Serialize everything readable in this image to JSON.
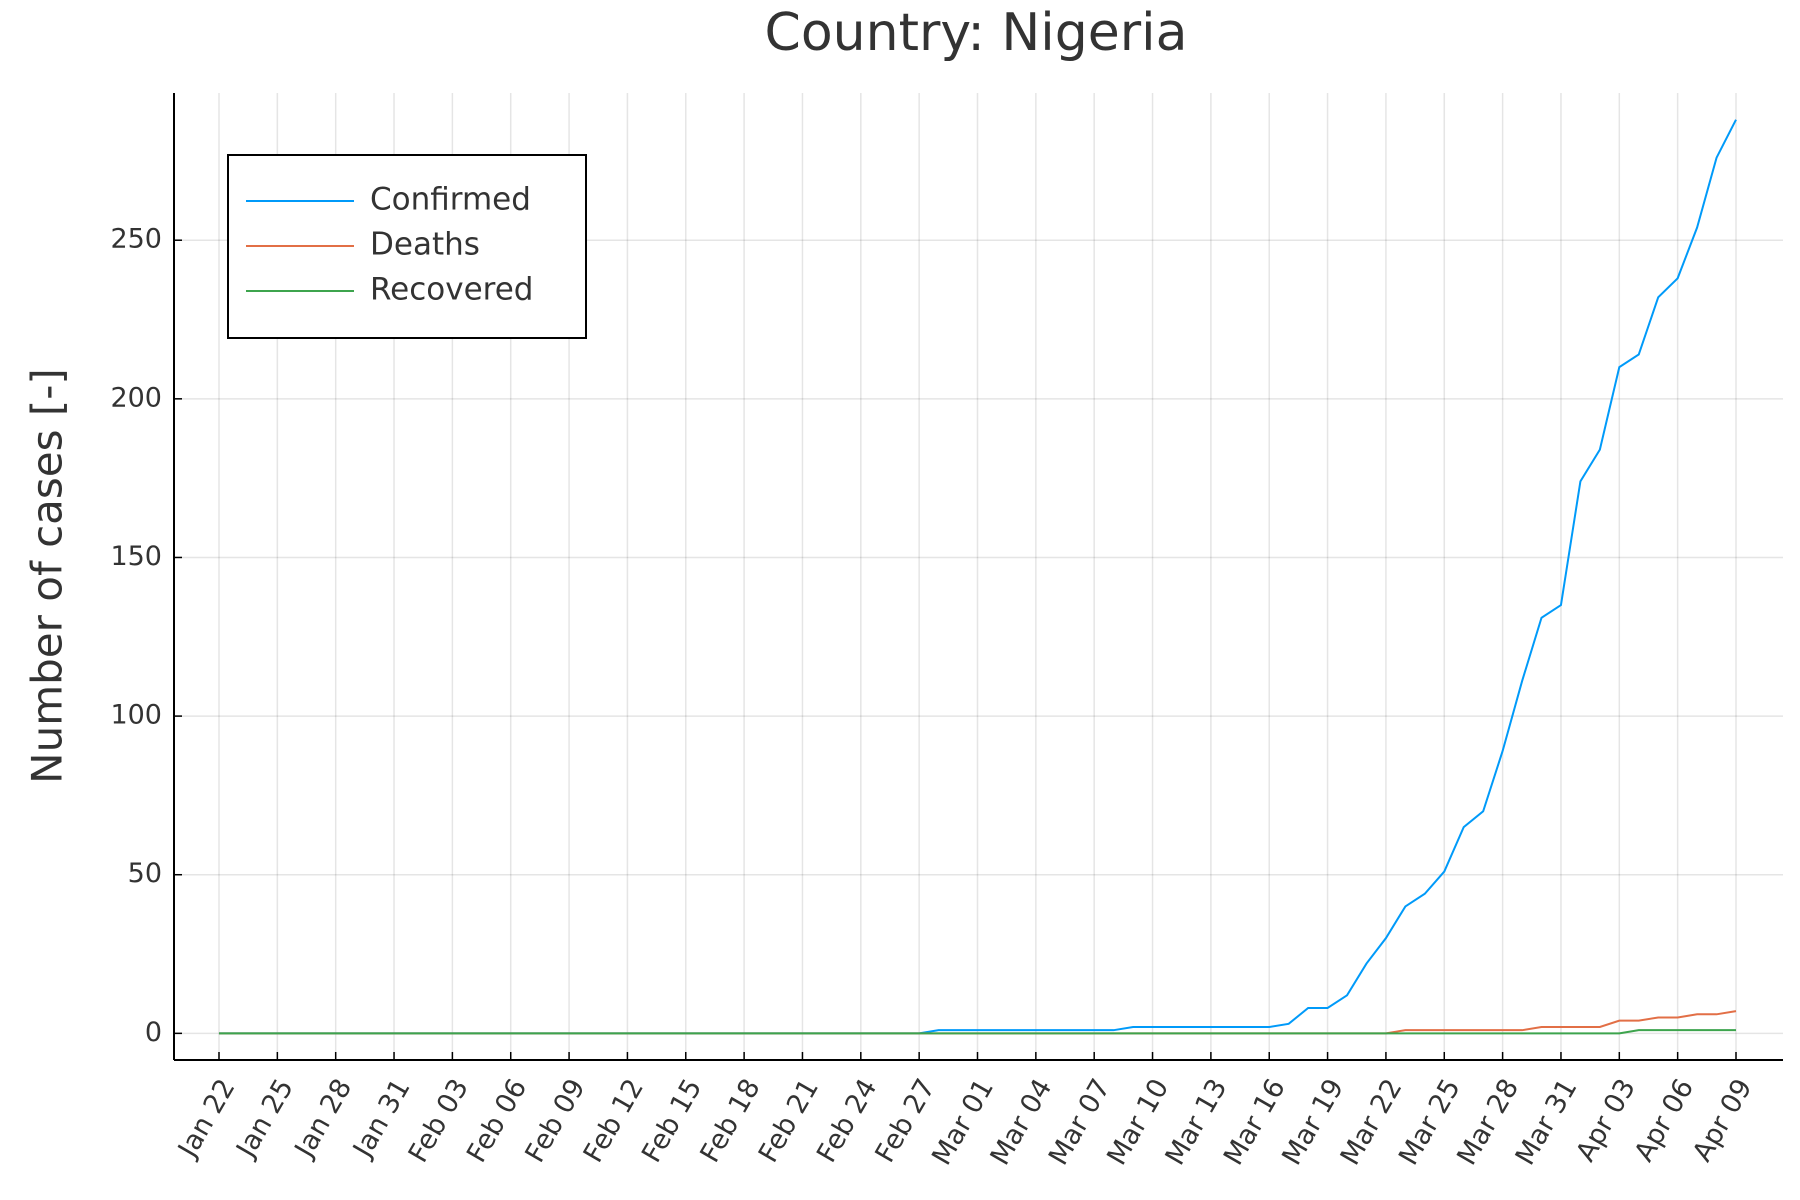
{
  "chart_data": {
    "type": "line",
    "title": "Country: Nigeria",
    "y_label": "Number of cases [-]",
    "categories": [
      "Jan 22",
      null,
      null,
      "Jan 25",
      null,
      null,
      "Jan 28",
      null,
      null,
      "Jan 31",
      null,
      null,
      "Feb 03",
      null,
      null,
      "Feb 06",
      null,
      null,
      "Feb 09",
      null,
      null,
      "Feb 12",
      null,
      null,
      "Feb 15",
      null,
      null,
      "Feb 18",
      null,
      null,
      "Feb 21",
      null,
      null,
      "Feb 24",
      null,
      null,
      "Feb 27",
      null,
      null,
      "Mar 01",
      null,
      null,
      "Mar 04",
      null,
      null,
      "Mar 07",
      null,
      null,
      "Mar 10",
      null,
      null,
      "Mar 13",
      null,
      null,
      "Mar 16",
      null,
      null,
      "Mar 19",
      null,
      null,
      "Mar 22",
      null,
      null,
      "Mar 25",
      null,
      null,
      "Mar 28",
      null,
      null,
      "Mar 31",
      null,
      null,
      "Apr 03",
      null,
      null,
      "Apr 06",
      null,
      null,
      "Apr 09"
    ],
    "series": [
      {
        "name": "Confirmed",
        "color": "#009af9",
        "values": [
          0,
          0,
          0,
          0,
          0,
          0,
          0,
          0,
          0,
          0,
          0,
          0,
          0,
          0,
          0,
          0,
          0,
          0,
          0,
          0,
          0,
          0,
          0,
          0,
          0,
          0,
          0,
          0,
          0,
          0,
          0,
          0,
          0,
          0,
          0,
          0,
          0,
          1,
          1,
          1,
          1,
          1,
          1,
          1,
          1,
          1,
          1,
          2,
          2,
          2,
          2,
          2,
          2,
          2,
          2,
          3,
          8,
          8,
          12,
          22,
          30,
          40,
          44,
          51,
          65,
          70,
          89,
          111,
          131,
          135,
          174,
          184,
          210,
          214,
          232,
          238,
          254,
          276,
          288
        ]
      },
      {
        "name": "Deaths",
        "color": "#e26f46",
        "values": [
          0,
          0,
          0,
          0,
          0,
          0,
          0,
          0,
          0,
          0,
          0,
          0,
          0,
          0,
          0,
          0,
          0,
          0,
          0,
          0,
          0,
          0,
          0,
          0,
          0,
          0,
          0,
          0,
          0,
          0,
          0,
          0,
          0,
          0,
          0,
          0,
          0,
          0,
          0,
          0,
          0,
          0,
          0,
          0,
          0,
          0,
          0,
          0,
          0,
          0,
          0,
          0,
          0,
          0,
          0,
          0,
          0,
          0,
          0,
          0,
          0,
          1,
          1,
          1,
          1,
          1,
          1,
          1,
          2,
          2,
          2,
          2,
          4,
          4,
          5,
          5,
          6,
          6,
          7
        ]
      },
      {
        "name": "Recovered",
        "color": "#3da44d",
        "values": [
          0,
          0,
          0,
          0,
          0,
          0,
          0,
          0,
          0,
          0,
          0,
          0,
          0,
          0,
          0,
          0,
          0,
          0,
          0,
          0,
          0,
          0,
          0,
          0,
          0,
          0,
          0,
          0,
          0,
          0,
          0,
          0,
          0,
          0,
          0,
          0,
          0,
          0,
          0,
          0,
          0,
          0,
          0,
          0,
          0,
          0,
          0,
          0,
          0,
          0,
          0,
          0,
          0,
          0,
          0,
          0,
          0,
          0,
          0,
          0,
          0,
          0,
          0,
          0,
          0,
          0,
          0,
          0,
          0,
          0,
          0,
          0,
          0,
          1,
          1,
          1,
          1,
          1,
          1
        ]
      }
    ],
    "ylim": [
      -8.4,
      296.4
    ],
    "yticks": [
      0,
      50,
      100,
      150,
      200,
      250
    ],
    "grid": true,
    "legend": "top-left"
  }
}
